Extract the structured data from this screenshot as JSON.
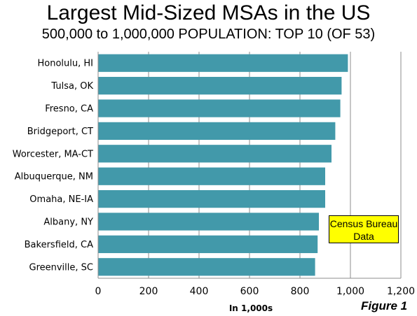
{
  "chart_data": {
    "type": "bar",
    "orientation": "horizontal",
    "title": "Largest Mid-Sized MSAs in the US",
    "subtitle": "500,000 to 1,000,000 POPULATION: TOP 10 (OF 53)",
    "xlabel": "In 1,000s",
    "ylabel": "",
    "xlim": [
      0,
      1200
    ],
    "xticks": [
      0,
      200,
      400,
      600,
      800,
      1000,
      1200
    ],
    "xtick_labels": [
      "0",
      "200",
      "400",
      "600",
      "800",
      "1,000",
      "1,200"
    ],
    "grid": true,
    "categories": [
      "Honolulu, HI",
      "Tulsa, OK",
      "Fresno, CA",
      "Bridgeport, CT",
      "Worcester, MA-CT",
      "Albuquerque, NM",
      "Omaha, NE-IA",
      "Albany, NY",
      "Bakersfield, CA",
      "Greenville, SC"
    ],
    "values": [
      990,
      965,
      960,
      940,
      925,
      900,
      900,
      875,
      870,
      860
    ],
    "bar_color": "#4299aa",
    "annotation": "Census Bureau Data",
    "annotation_color": "#ffff00"
  },
  "note_line1": "Census Bureau",
  "note_line2": "Data",
  "figure_label": "Figure 1"
}
